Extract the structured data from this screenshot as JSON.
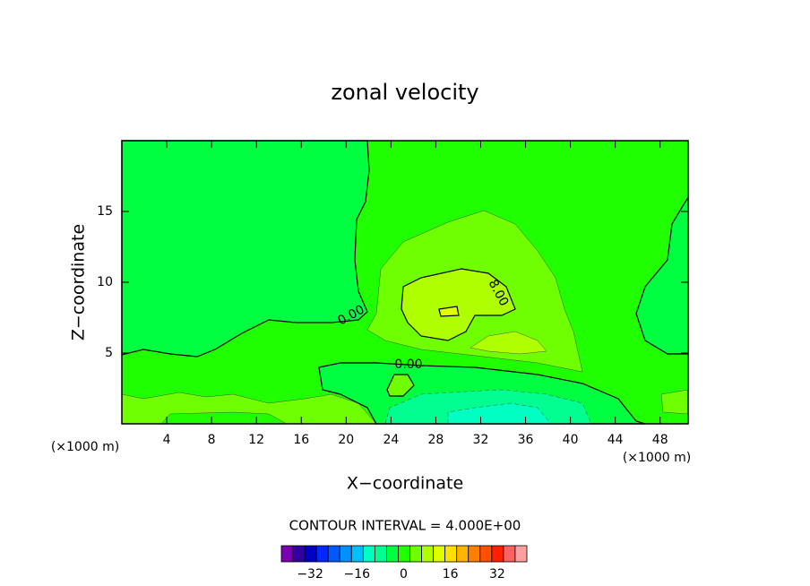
{
  "chart_data": {
    "type": "contour",
    "title": "zonal velocity",
    "xlabel": "X−coordinate",
    "ylabel": "Z−coordinate",
    "unit_label": "(×1000 m)",
    "xlim": [
      0,
      50.5
    ],
    "xticks": [
      4,
      8,
      12,
      16,
      20,
      24,
      28,
      32,
      36,
      40,
      44,
      48
    ],
    "ylim": [
      0,
      20
    ],
    "yticks": [
      5,
      10,
      15
    ],
    "contour_labels": [
      {
        "value": 0,
        "label": "0.00"
      },
      {
        "value": 0,
        "label": "0.00"
      },
      {
        "value": 8,
        "label": "8.00"
      }
    ],
    "contour_interval_label": "CONTOUR INTERVAL = 4.000E+00",
    "colorbar": {
      "levels": [
        -40,
        -36,
        -32,
        -28,
        -24,
        -20,
        -16,
        -12,
        -8,
        -4,
        0,
        4,
        8,
        12,
        16,
        20,
        24,
        28,
        32,
        36,
        40,
        44
      ],
      "colors": [
        "#7a00b4",
        "#3000a0",
        "#0000c8",
        "#0028ff",
        "#0058ff",
        "#0090ff",
        "#00c0ff",
        "#00ffc0",
        "#00ff90",
        "#00ff40",
        "#20ff00",
        "#70ff00",
        "#b0ff00",
        "#e0ff00",
        "#ffe000",
        "#ffb400",
        "#ff8000",
        "#ff5000",
        "#ff2000",
        "#ff6060",
        "#ffa0a0"
      ],
      "ticks": [
        {
          "value": -32,
          "label": "−32"
        },
        {
          "value": -16,
          "label": "−16"
        },
        0,
        16,
        32
      ]
    }
  }
}
